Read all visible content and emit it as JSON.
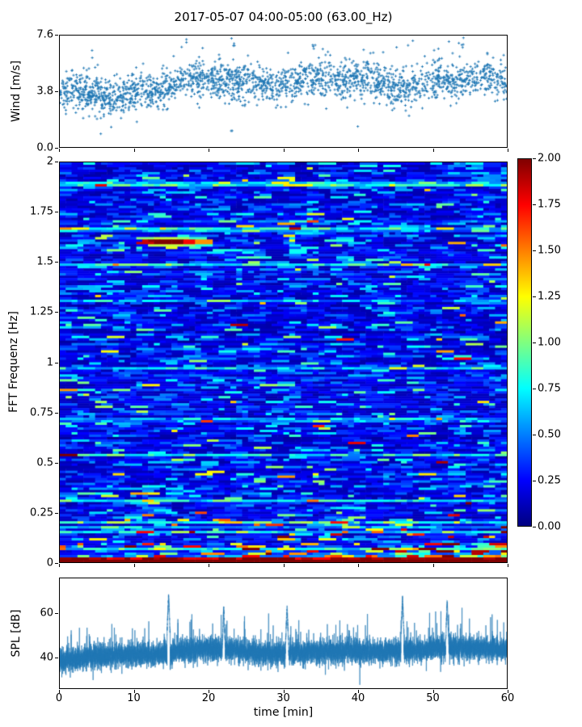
{
  "figure": {
    "title": "2017-05-07 04:00-05:00 (63.00_Hz)",
    "background": "#ffffff",
    "accent_color": "#1f77b4",
    "xlabel": "time [min]",
    "xlim": [
      0,
      60
    ],
    "xticks": [
      {
        "label": "0",
        "value": 0
      },
      {
        "label": "10",
        "value": 10
      },
      {
        "label": "20",
        "value": 20
      },
      {
        "label": "30",
        "value": 30
      },
      {
        "label": "40",
        "value": 40
      },
      {
        "label": "50",
        "value": 50
      },
      {
        "label": "60",
        "value": 60
      }
    ]
  },
  "chart_data": [
    {
      "type": "scatter",
      "name": "wind-speed",
      "ylabel": "Wind [m/s]",
      "ylim": [
        0,
        7.6
      ],
      "xlim": [
        0,
        60
      ],
      "yticks": [
        {
          "label": "0.0",
          "value": 0
        },
        {
          "label": "3.8",
          "value": 3.8
        },
        {
          "label": "7.6",
          "value": 7.6
        }
      ],
      "marker": "+",
      "color": "#1f77b4",
      "summary": "Dense cloud of ~2300 small '+' markers; mean wind rises from ~3.6 m/s at 0 min to ~4.4 m/s after ~20 min, spread roughly ±1.2 m/s, sparse outliers between ~0.8 and ~7.5 m/s",
      "gen": {
        "seed": 1337,
        "n": 2300,
        "mean_start": 3.55,
        "mean_end": 4.45,
        "rise_end_frac": 0.35,
        "sd": 0.62,
        "tail_prob": 0.07,
        "tail_scale": 1.7,
        "dip_center_frac": 0.115,
        "dip_depth": 0.35,
        "outliers_high_t_min": [
          16.5,
          23,
          34,
          47,
          54
        ],
        "outliers_low": [
          {
            "t_min": 5.5,
            "v": 0.9
          },
          {
            "t_min": 23,
            "v": 1.1
          },
          {
            "t_min": 40,
            "v": 1.4
          }
        ]
      }
    },
    {
      "type": "heatmap",
      "name": "fft-spectrogram",
      "ylabel": "FFT Frequenz [Hz]",
      "ylim": [
        0,
        2
      ],
      "xlim": [
        0,
        60
      ],
      "yticks": [
        {
          "label": "0",
          "value": 0
        },
        {
          "label": "0.25",
          "value": 0.25
        },
        {
          "label": "0.5",
          "value": 0.5
        },
        {
          "label": "0.75",
          "value": 0.75
        },
        {
          "label": "1",
          "value": 1
        },
        {
          "label": "1.25",
          "value": 1.25
        },
        {
          "label": "1.5",
          "value": 1.5
        },
        {
          "label": "1.75",
          "value": 1.75
        },
        {
          "label": "2",
          "value": 2
        }
      ],
      "colormap": "jet",
      "clim": [
        0,
        2
      ],
      "colorbar": {
        "ticks": [
          {
            "label": "0.00",
            "value": 0
          },
          {
            "label": "0.25",
            "value": 0.25
          },
          {
            "label": "0.50",
            "value": 0.5
          },
          {
            "label": "0.75",
            "value": 0.75
          },
          {
            "label": "1.00",
            "value": 1
          },
          {
            "label": "1.25",
            "value": 1.25
          },
          {
            "label": "1.50",
            "value": 1.5
          },
          {
            "label": "1.75",
            "value": 1.75
          },
          {
            "label": "2.00",
            "value": 2
          }
        ]
      },
      "features": [
        "broadband mottled blue background (values ~0.1-0.6) in short horizontal segments",
        "scattered cyan/green segments, occasional yellow speckles",
        "energy rises strongly toward 0 Hz; lowest rows saturated at ~2 (dark red)",
        "warm low-frequency (<0.3 Hz) energy increases from left to right",
        "narrowband tonal streak near 1.6 Hz between ~11.5 and ~19.5 min reaching values 1.4-2"
      ],
      "gen": {
        "seed": 20170507,
        "cols": 76,
        "rows": 166,
        "base_offset": 0.08,
        "base_scale": 0.22,
        "row_bright_prob": 0.09,
        "row_dark_prob": 0.05,
        "lowfreq_exp_scale": 0.03,
        "lowfreq_amp": 0.9,
        "warm_prob_scale": 0.11,
        "warm_time_gain": 0.55,
        "saturated_below_hz": 0.03,
        "streak": {
          "freq_hz": 1.6,
          "t_start_frac": 0.188,
          "t_end_frac": 0.335,
          "peak_frac": 0.235,
          "peak_value": 2.05
        }
      }
    },
    {
      "type": "line",
      "name": "spl",
      "ylabel": "SPL [dB]",
      "ylim": [
        26,
        76
      ],
      "xlim": [
        0,
        60
      ],
      "yticks": [
        {
          "label": "40",
          "value": 40
        },
        {
          "label": "60",
          "value": 60
        }
      ],
      "color": "#1f77b4",
      "summary": "Dense noisy broadband level trace around 38-45 dB, rising slightly with time; frequent upward spikes to 55-70 dB, strongest near ~15, ~22, ~30, ~46 and ~52 min",
      "gen": {
        "seed": 424242,
        "n": 12000,
        "base_start": 38.6,
        "base_rise": 4.6,
        "rise_start_frac": 0.03,
        "rise_span_frac": 0.3,
        "sd1": 2.3,
        "sd2": 1.1,
        "spike_prob": 0.013,
        "dip_prob": 0.004,
        "events": [
          {
            "t_min": 14.6,
            "peak_db": 70
          },
          {
            "t_min": 22.0,
            "peak_db": 64
          },
          {
            "t_min": 30.5,
            "peak_db": 65
          },
          {
            "t_min": 46.0,
            "peak_db": 69
          },
          {
            "t_min": 52.0,
            "peak_db": 67
          }
        ]
      }
    }
  ]
}
